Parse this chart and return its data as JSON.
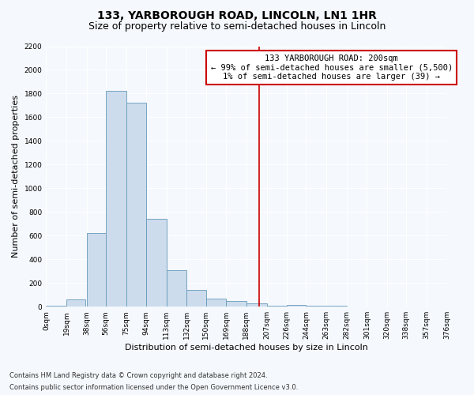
{
  "title": "133, YARBOROUGH ROAD, LINCOLN, LN1 1HR",
  "subtitle": "Size of property relative to semi-detached houses in Lincoln",
  "xlabel": "Distribution of semi-detached houses by size in Lincoln",
  "ylabel": "Number of semi-detached properties",
  "footnote1": "Contains HM Land Registry data © Crown copyright and database right 2024.",
  "footnote2": "Contains public sector information licensed under the Open Government Licence v3.0.",
  "bar_left_edges": [
    0,
    19,
    38,
    56,
    75,
    94,
    113,
    132,
    150,
    169,
    188,
    207,
    226,
    244,
    263,
    282,
    301,
    320,
    338,
    357
  ],
  "bar_heights": [
    10,
    60,
    625,
    1825,
    1725,
    740,
    305,
    140,
    65,
    45,
    25,
    10,
    15,
    5,
    5,
    0,
    0,
    0,
    0,
    0
  ],
  "bar_widths": [
    19,
    18,
    18,
    19,
    19,
    19,
    19,
    18,
    19,
    19,
    19,
    19,
    18,
    19,
    19,
    19,
    19,
    18,
    19,
    19
  ],
  "bar_color": "#ccdcec",
  "bar_edgecolor": "#6699bb",
  "property_line_x": 200,
  "property_line_color": "#cc0000",
  "annotation_title": "133 YARBOROUGH ROAD: 200sqm",
  "annotation_line1": "← 99% of semi-detached houses are smaller (5,500)",
  "annotation_line2": "1% of semi-detached houses are larger (39) →",
  "annotation_box_color": "#cc0000",
  "xlim": [
    0,
    376
  ],
  "ylim": [
    0,
    2200
  ],
  "yticks": [
    0,
    200,
    400,
    600,
    800,
    1000,
    1200,
    1400,
    1600,
    1800,
    2000,
    2200
  ],
  "xtick_labels": [
    "0sqm",
    "19sqm",
    "38sqm",
    "56sqm",
    "75sqm",
    "94sqm",
    "113sqm",
    "132sqm",
    "150sqm",
    "169sqm",
    "188sqm",
    "207sqm",
    "226sqm",
    "244sqm",
    "263sqm",
    "282sqm",
    "301sqm",
    "320sqm",
    "338sqm",
    "357sqm",
    "376sqm"
  ],
  "xtick_positions": [
    0,
    19,
    38,
    56,
    75,
    94,
    113,
    132,
    150,
    169,
    188,
    207,
    226,
    244,
    263,
    282,
    301,
    320,
    338,
    357,
    376
  ],
  "background_color": "#f5f8fc",
  "grid_color": "#ffffff",
  "title_fontsize": 10,
  "subtitle_fontsize": 9,
  "axis_label_fontsize": 8,
  "tick_fontsize": 6.5,
  "annotation_fontsize": 7.5,
  "footnote_fontsize": 6
}
